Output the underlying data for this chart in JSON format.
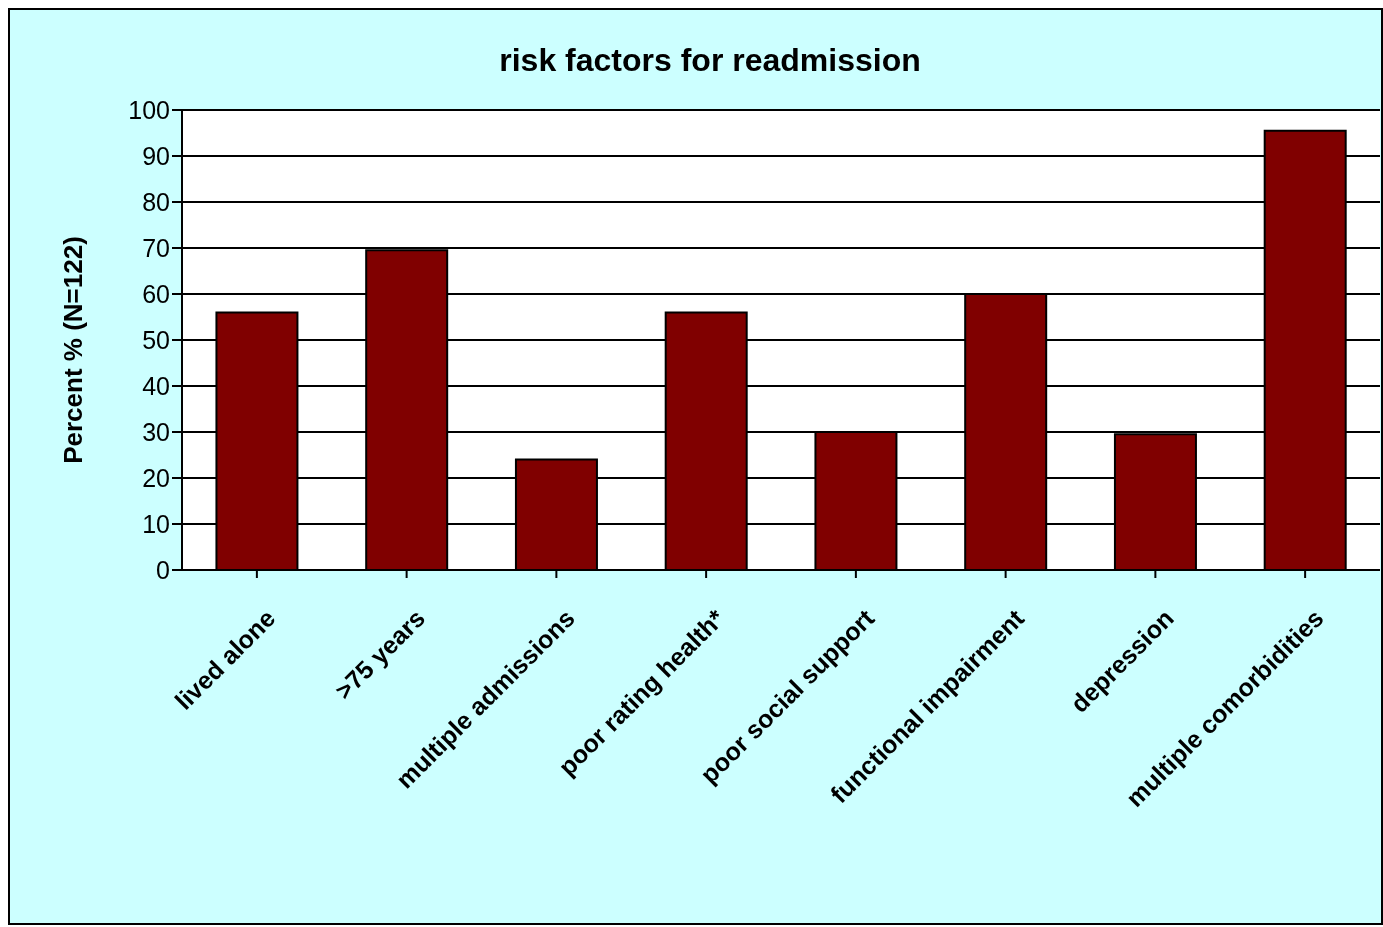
{
  "chart_data": {
    "type": "bar",
    "title": "risk factors for readmission",
    "ylabel": "Percent %  (N=122)",
    "categories": [
      "lived alone",
      ">75 years",
      "multiple admissions",
      "poor rating health*",
      "poor social support",
      "functional impairment",
      "depression",
      "multiple comorbidities"
    ],
    "values": [
      56,
      69.5,
      24,
      56,
      30,
      60,
      29.5,
      95.5
    ],
    "color": "#800000",
    "ylim": [
      0,
      100
    ],
    "yticks": [
      0,
      10,
      20,
      30,
      40,
      50,
      60,
      70,
      80,
      90,
      100
    ],
    "grid": "y",
    "legend": false
  }
}
